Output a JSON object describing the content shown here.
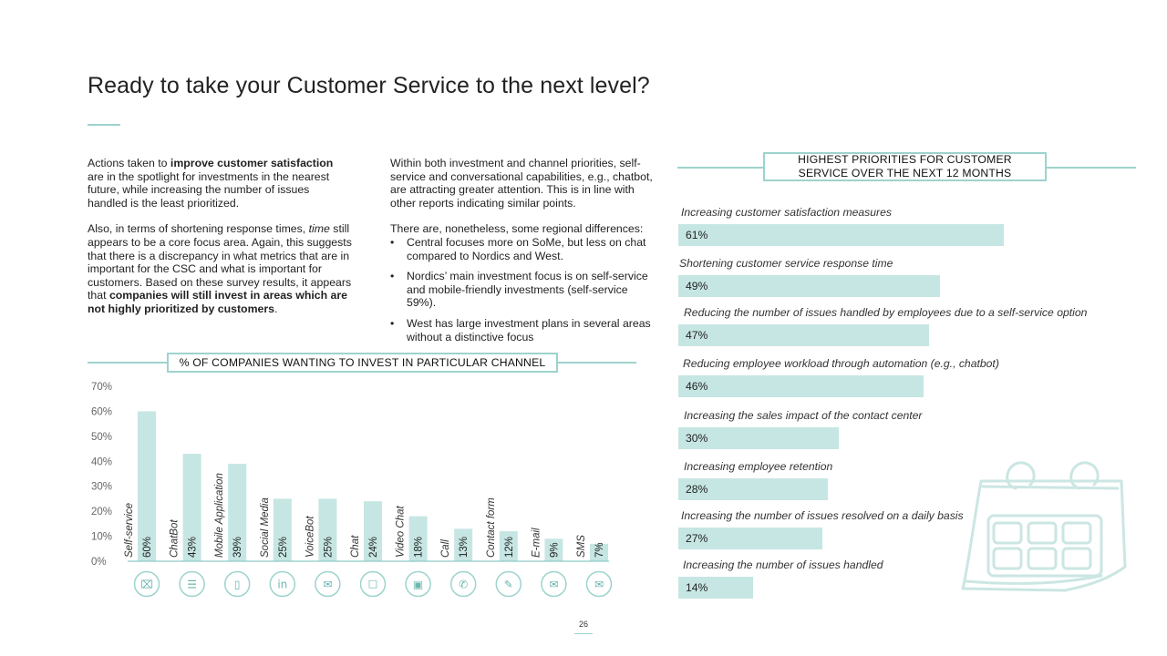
{
  "title": "Ready to take your Customer Service to the next level?",
  "col1": {
    "p1_pre": "Actions taken to ",
    "p1_bold": "improve customer satisfaction",
    "p1_post": " are in the spotlight for investments in the nearest future, while increasing the number of issues handled is the least prioritized.",
    "p2_pre": "Also, in terms of shortening response times, ",
    "p2_italic": "time",
    "p2_mid": " still appears to be a core focus area. Again, this suggests that there is a discrepancy in what metrics that are in important for the CSC and what is important for customers. Based on these survey results, it appears that ",
    "p2_bold": "companies will still invest in areas which are not highly prioritized by customers",
    "p2_end": "."
  },
  "col2": {
    "p1": "Within both investment and channel priorities, self-service and conversational capabilities, e.g., chatbot, are attracting greater attention. This is in line with other reports indicating similar points.",
    "p2": "There are, nonetheless, some regional differences:",
    "bullets": [
      "Central focuses more on SoMe, but less on chat compared to Nordics and West.",
      "Nordics’ main investment focus is on self-service and mobile-friendly investments (self-service 59%).",
      "West has large investment plans in several areas without a distinctive focus"
    ]
  },
  "colors": {
    "accent": "#9dd3cd",
    "bar": "#c6e6e3",
    "text": "#222222"
  },
  "chart_data": [
    {
      "type": "bar",
      "title": "% OF COMPANIES WANTING TO INVEST IN PARTICULAR CHANNEL",
      "categories": [
        "Self-service",
        "ChatBot",
        "Mobile Application",
        "Social Media",
        "VoiceBot",
        "Chat",
        "Video Chat",
        "Call",
        "Contact form",
        "E-mail",
        "SMS"
      ],
      "values": [
        60,
        43,
        39,
        25,
        25,
        24,
        18,
        13,
        12,
        9,
        7
      ],
      "value_labels": [
        "60%",
        "43%",
        "39%",
        "25%",
        "25%",
        "24%",
        "18%",
        "13%",
        "12%",
        "9%",
        "7%"
      ],
      "icons": [
        "self-service-icon",
        "chatbot-icon",
        "mobile-icon",
        "linkedin-icon",
        "megaphone-icon",
        "chat-icon",
        "video-chat-icon",
        "phone-icon",
        "contact-form-icon",
        "email-icon",
        "envelope-icon"
      ],
      "yticks": [
        "0%",
        "10%",
        "20%",
        "30%",
        "40%",
        "50%",
        "60%",
        "70%"
      ],
      "ylim": [
        0,
        70
      ]
    },
    {
      "type": "bar",
      "orientation": "horizontal",
      "title": "HIGHEST PRIORITIES FOR CUSTOMER SERVICE OVER THE NEXT 12 MONTHS",
      "categories": [
        "Increasing customer satisfaction measures",
        "Shortening customer service response time",
        "Reducing the number of issues handled by employees due to a self-service option",
        "Reducing employee workload through automation (e.g., chatbot)",
        "Increasing the sales impact of the contact center",
        "Increasing employee retention",
        "Increasing the number of issues resolved on a daily basis",
        "Increasing the number of issues handled"
      ],
      "values": [
        61,
        49,
        47,
        46,
        30,
        28,
        27,
        14
      ],
      "value_labels": [
        "61%",
        "49%",
        "47%",
        "46%",
        "30%",
        "28%",
        "27%",
        "14%"
      ]
    }
  ],
  "page_number": "26"
}
